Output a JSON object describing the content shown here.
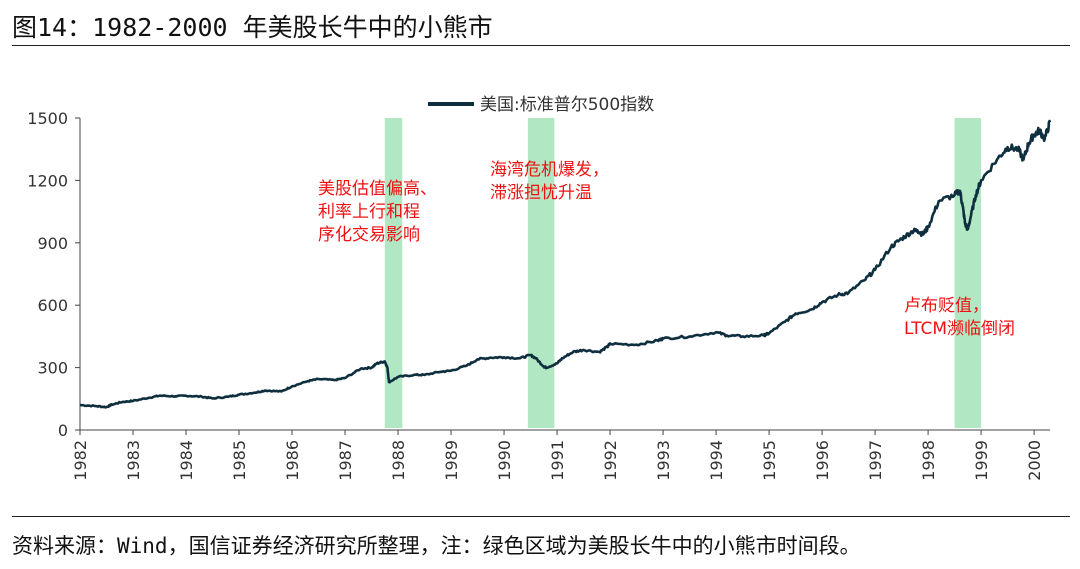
{
  "title": "图14：1982-2000 年美股长牛中的小熊市",
  "source": "资料来源：Wind，国信证券经济研究所整理，注：绿色区域为美股长牛中的小熊市时间段。",
  "colors": {
    "line": "#0f2f3f",
    "band": "#a8e4bd",
    "annotation": "#ee1111",
    "axis": "#444444"
  },
  "chart_data": {
    "type": "line",
    "title": "",
    "xlabel": "",
    "ylabel": "",
    "legend": {
      "label": "美国:标准普尔500指数",
      "placement": "top-center"
    },
    "xlim": [
      1982,
      2000.3
    ],
    "ylim": [
      0,
      1500
    ],
    "yticks": [
      0,
      300,
      600,
      900,
      1200,
      1500
    ],
    "xticks": [
      "1982",
      "1983",
      "1984",
      "1985",
      "1986",
      "1987",
      "1988",
      "1989",
      "1990",
      "1991",
      "1992",
      "1993",
      "1994",
      "1995",
      "1996",
      "1997",
      "1998",
      "1999",
      "2000"
    ],
    "series": [
      {
        "name": "美国:标准普尔500指数",
        "x": [
          1982.0,
          1982.3,
          1982.5,
          1982.6,
          1982.8,
          1983.0,
          1983.3,
          1983.5,
          1983.8,
          1984.0,
          1984.3,
          1984.5,
          1984.8,
          1985.0,
          1985.3,
          1985.5,
          1985.8,
          1986.0,
          1986.3,
          1986.5,
          1986.8,
          1987.0,
          1987.3,
          1987.5,
          1987.6,
          1987.75,
          1987.8,
          1987.83,
          1988.0,
          1988.3,
          1988.5,
          1988.8,
          1989.0,
          1989.3,
          1989.5,
          1989.75,
          1990.0,
          1990.3,
          1990.5,
          1990.6,
          1990.75,
          1990.8,
          1991.0,
          1991.1,
          1991.3,
          1991.5,
          1991.8,
          1991.95,
          1992.0,
          1992.5,
          1992.9,
          1993.0,
          1993.5,
          1994.0,
          1994.2,
          1994.5,
          1994.9,
          1995.0,
          1995.3,
          1995.5,
          1995.8,
          1996.0,
          1996.3,
          1996.5,
          1996.8,
          1997.0,
          1997.3,
          1997.5,
          1997.7,
          1997.8,
          1997.9,
          1998.0,
          1998.2,
          1998.5,
          1998.6,
          1998.65,
          1998.7,
          1998.75,
          1998.8,
          1998.9,
          1999.0,
          1999.3,
          1999.5,
          1999.7,
          1999.8,
          1999.9,
          2000.0,
          2000.1,
          2000.2,
          2000.3
        ],
        "values": [
          120,
          115,
          110,
          122,
          135,
          140,
          155,
          165,
          162,
          165,
          160,
          152,
          160,
          170,
          180,
          190,
          185,
          210,
          235,
          245,
          240,
          250,
          295,
          300,
          320,
          330,
          300,
          230,
          255,
          265,
          265,
          280,
          285,
          310,
          340,
          348,
          350,
          345,
          360,
          345,
          305,
          300,
          320,
          345,
          375,
          385,
          375,
          400,
          415,
          410,
          430,
          440,
          450,
          470,
          455,
          450,
          455,
          465,
          520,
          560,
          580,
          615,
          650,
          660,
          720,
          770,
          880,
          920,
          955,
          960,
          940,
          975,
          1100,
          1130,
          1150,
          1080,
          990,
          965,
          1020,
          1130,
          1200,
          1300,
          1360,
          1350,
          1300,
          1380,
          1420,
          1440,
          1400,
          1480
        ]
      }
    ],
    "bear_periods": [
      {
        "start": 1987.75,
        "end": 1988.08,
        "label": "美股估值偏高、\n利率上行和程\n序化交易影响"
      },
      {
        "start": 1990.45,
        "end": 1990.95,
        "label": "海湾危机爆发，\n滞涨担忧升温"
      },
      {
        "start": 1998.5,
        "end": 1999.0,
        "label": "卢布贬值，\nLTCM濒临倒闭"
      }
    ]
  }
}
